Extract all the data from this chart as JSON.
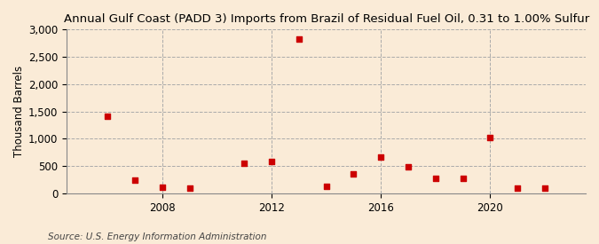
{
  "title": "Annual Gulf Coast (PADD 3) Imports from Brazil of Residual Fuel Oil, 0.31 to 1.00% Sulfur",
  "ylabel": "Thousand Barrels",
  "source": "Source: U.S. Energy Information Administration",
  "background_color": "#faebd7",
  "plot_bg_color": "#ffffff",
  "marker_color": "#cc0000",
  "years": [
    2006,
    2007,
    2008,
    2009,
    2011,
    2012,
    2013,
    2014,
    2015,
    2016,
    2017,
    2018,
    2019,
    2020,
    2021,
    2022
  ],
  "values": [
    1420,
    250,
    110,
    100,
    560,
    580,
    2820,
    130,
    360,
    660,
    490,
    270,
    270,
    1030,
    100,
    100
  ],
  "ylim": [
    0,
    3000
  ],
  "yticks": [
    0,
    500,
    1000,
    1500,
    2000,
    2500,
    3000
  ],
  "xtick_years": [
    2008,
    2012,
    2016,
    2020
  ],
  "xlim": [
    2004.5,
    2023.5
  ],
  "title_fontsize": 9.5,
  "axis_fontsize": 8.5,
  "source_fontsize": 7.5
}
